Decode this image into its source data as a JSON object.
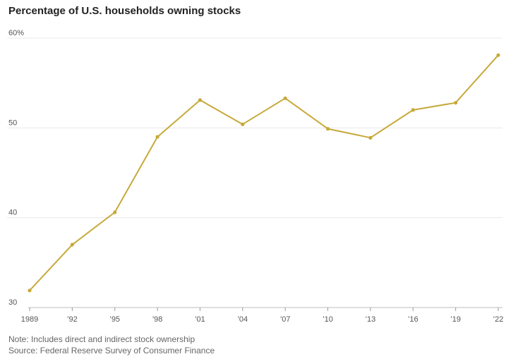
{
  "chart_data": {
    "type": "line",
    "title": "Percentage of U.S. households owning stocks",
    "xlabel": "",
    "ylabel": "",
    "x": [
      "1989",
      "’92",
      "’95",
      "’98",
      "’01",
      "’04",
      "’07",
      "’10",
      "’13",
      "’16",
      "’19",
      "’22"
    ],
    "series": [
      {
        "values": [
          31.9,
          37.0,
          40.6,
          49.0,
          53.1,
          50.4,
          53.3,
          49.9,
          48.9,
          52.0,
          52.8,
          58.1
        ]
      }
    ],
    "ylim": [
      30,
      60
    ],
    "yticks": [
      {
        "value": 30,
        "label": "30"
      },
      {
        "value": 40,
        "label": "40"
      },
      {
        "value": 50,
        "label": "50"
      },
      {
        "value": 60,
        "label": "60%"
      }
    ],
    "grid": true,
    "line_color": "#c7a93a"
  },
  "footer": {
    "note": "Note: Includes direct and indirect stock ownership",
    "source": "Source: Federal Reserve Survey of Consumer Finance"
  }
}
